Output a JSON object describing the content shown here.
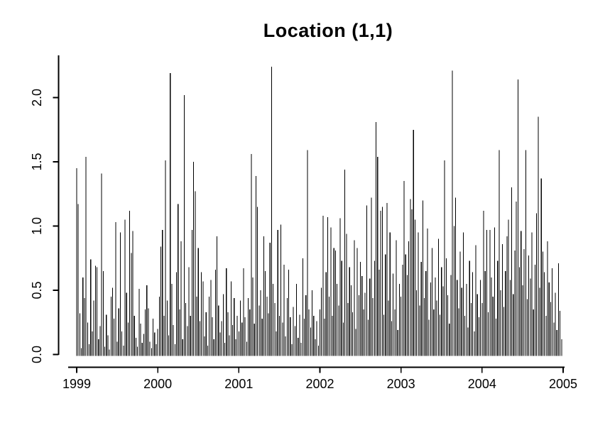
{
  "window": {
    "background_color": "#ffffff",
    "foreground_color": "#000000"
  },
  "chart_data": {
    "type": "bar",
    "subtype": "vertical-spike-series (R base plot, type='h')",
    "title": "Location (1,1)",
    "xlabel": "",
    "ylabel": "",
    "x_tick_labels": [
      "1999",
      "2000",
      "2001",
      "2002",
      "2003",
      "2004",
      "2005"
    ],
    "x_tick_values": [
      1999,
      2000,
      2001,
      2002,
      2003,
      2004,
      2005
    ],
    "y_tick_labels": [
      "0.0",
      "0.5",
      "1.0",
      "1.5",
      "2.0"
    ],
    "y_tick_values": [
      0,
      0.5,
      1.0,
      1.5,
      2.0
    ],
    "xlim": [
      1999,
      2005
    ],
    "ylim": [
      0,
      2.33
    ],
    "grid": false,
    "legend": false,
    "bar_color": "#000000",
    "x_start": 1999,
    "points_per_year": 52,
    "notable_peaks": [
      {
        "x": 1999.0,
        "y": 1.45
      },
      {
        "x": 1999.12,
        "y": 1.54
      },
      {
        "x": 1999.31,
        "y": 1.41
      },
      {
        "x": 2000.1,
        "y": 1.51
      },
      {
        "x": 2000.15,
        "y": 2.19
      },
      {
        "x": 2000.33,
        "y": 2.02
      },
      {
        "x": 2000.44,
        "y": 1.5
      },
      {
        "x": 2001.15,
        "y": 1.56
      },
      {
        "x": 2001.21,
        "y": 1.39
      },
      {
        "x": 2001.4,
        "y": 2.24
      },
      {
        "x": 2001.85,
        "y": 1.59
      },
      {
        "x": 2002.31,
        "y": 1.44
      },
      {
        "x": 2002.69,
        "y": 1.81
      },
      {
        "x": 2002.71,
        "y": 1.54
      },
      {
        "x": 2003.15,
        "y": 1.75
      },
      {
        "x": 2003.54,
        "y": 1.51
      },
      {
        "x": 2003.63,
        "y": 2.21
      },
      {
        "x": 2004.21,
        "y": 1.59
      },
      {
        "x": 2004.44,
        "y": 2.14
      },
      {
        "x": 2004.54,
        "y": 1.59
      },
      {
        "x": 2004.69,
        "y": 1.85
      },
      {
        "x": 2004.73,
        "y": 1.37
      },
      {
        "x": 2004.94,
        "y": 0.71
      }
    ],
    "series": [
      {
        "name": "Location (1,1)",
        "values": [
          1.45,
          1.17,
          0.32,
          0.05,
          0.6,
          0.44,
          1.54,
          0.25,
          0.08,
          0.74,
          0.18,
          0.42,
          0.69,
          0.68,
          0.12,
          0.22,
          1.41,
          0.65,
          0.06,
          0.31,
          0.15,
          0.04,
          0.45,
          0.52,
          0.28,
          1.03,
          0.1,
          0.36,
          0.95,
          0.18,
          0.07,
          1.05,
          0.48,
          0.25,
          1.12,
          0.79,
          0.96,
          0.3,
          0.13,
          0.06,
          0.51,
          0.24,
          0.09,
          0.16,
          0.35,
          0.54,
          0.36,
          0.1,
          0.05,
          0.28,
          0.17,
          0.08,
          0.2,
          0.45,
          0.84,
          0.97,
          0.3,
          1.51,
          0.42,
          0.15,
          2.19,
          0.55,
          0.23,
          0.08,
          0.64,
          1.17,
          0.35,
          0.88,
          0.12,
          2.02,
          0.4,
          0.22,
          0.68,
          0.3,
          0.97,
          1.5,
          1.27,
          0.45,
          0.83,
          0.26,
          0.64,
          0.57,
          0.14,
          0.33,
          0.07,
          0.45,
          0.58,
          0.29,
          0.12,
          0.66,
          0.92,
          0.38,
          0.17,
          0.26,
          0.47,
          0.09,
          0.67,
          0.33,
          0.15,
          0.57,
          0.23,
          0.44,
          0.12,
          0.3,
          0.18,
          0.42,
          0.25,
          0.67,
          0.29,
          0.1,
          0.44,
          0.35,
          1.56,
          0.6,
          0.24,
          1.39,
          1.15,
          0.38,
          0.5,
          0.28,
          0.92,
          0.65,
          0.45,
          0.32,
          0.87,
          2.24,
          0.55,
          0.4,
          0.18,
          0.97,
          0.3,
          1.01,
          0.25,
          0.7,
          0.14,
          0.44,
          0.66,
          0.29,
          0.08,
          0.37,
          0.22,
          0.55,
          0.13,
          0.31,
          0.09,
          0.75,
          0.28,
          0.46,
          1.59,
          0.35,
          0.21,
          0.5,
          0.3,
          0.12,
          0.26,
          0.07,
          0.35,
          0.52,
          1.08,
          0.28,
          0.64,
          1.07,
          0.45,
          0.99,
          0.3,
          0.83,
          0.81,
          0.55,
          0.38,
          1.06,
          0.73,
          0.25,
          1.44,
          0.94,
          0.4,
          0.68,
          0.54,
          0.33,
          0.89,
          0.2,
          0.83,
          0.46,
          0.72,
          0.61,
          0.35,
          0.48,
          1.16,
          0.27,
          0.59,
          1.22,
          0.44,
          0.73,
          1.81,
          1.54,
          0.66,
          1.12,
          1.15,
          0.31,
          0.78,
          1.18,
          0.42,
          0.95,
          0.26,
          0.63,
          0.35,
          0.89,
          0.19,
          0.55,
          0.45,
          0.7,
          1.35,
          0.78,
          0.62,
          0.88,
          1.21,
          1.13,
          1.75,
          1.05,
          0.5,
          0.95,
          0.38,
          0.72,
          1.2,
          0.44,
          0.65,
          0.98,
          0.27,
          0.56,
          0.83,
          0.35,
          0.6,
          0.42,
          0.9,
          0.31,
          0.68,
          0.53,
          1.51,
          0.75,
          0.46,
          0.24,
          0.62,
          2.21,
          1.0,
          1.22,
          0.58,
          0.36,
          0.8,
          0.52,
          0.95,
          0.3,
          0.55,
          0.21,
          0.73,
          0.4,
          0.64,
          0.18,
          0.85,
          0.47,
          0.29,
          0.58,
          0.4,
          1.12,
          0.65,
          0.97,
          0.33,
          0.97,
          0.6,
          0.45,
          0.99,
          0.28,
          0.73,
          1.59,
          0.5,
          0.86,
          0.37,
          0.65,
          0.92,
          1.05,
          0.58,
          1.3,
          0.47,
          0.81,
          1.19,
          2.14,
          0.68,
          0.96,
          0.54,
          0.82,
          1.59,
          0.43,
          0.77,
          0.59,
          0.95,
          0.35,
          0.7,
          1.1,
          1.85,
          0.52,
          1.37,
          0.8,
          0.64,
          0.3,
          0.88,
          0.56,
          0.41,
          0.67,
          0.25,
          0.48,
          0.19,
          0.71,
          0.34,
          0.12
        ]
      }
    ]
  }
}
